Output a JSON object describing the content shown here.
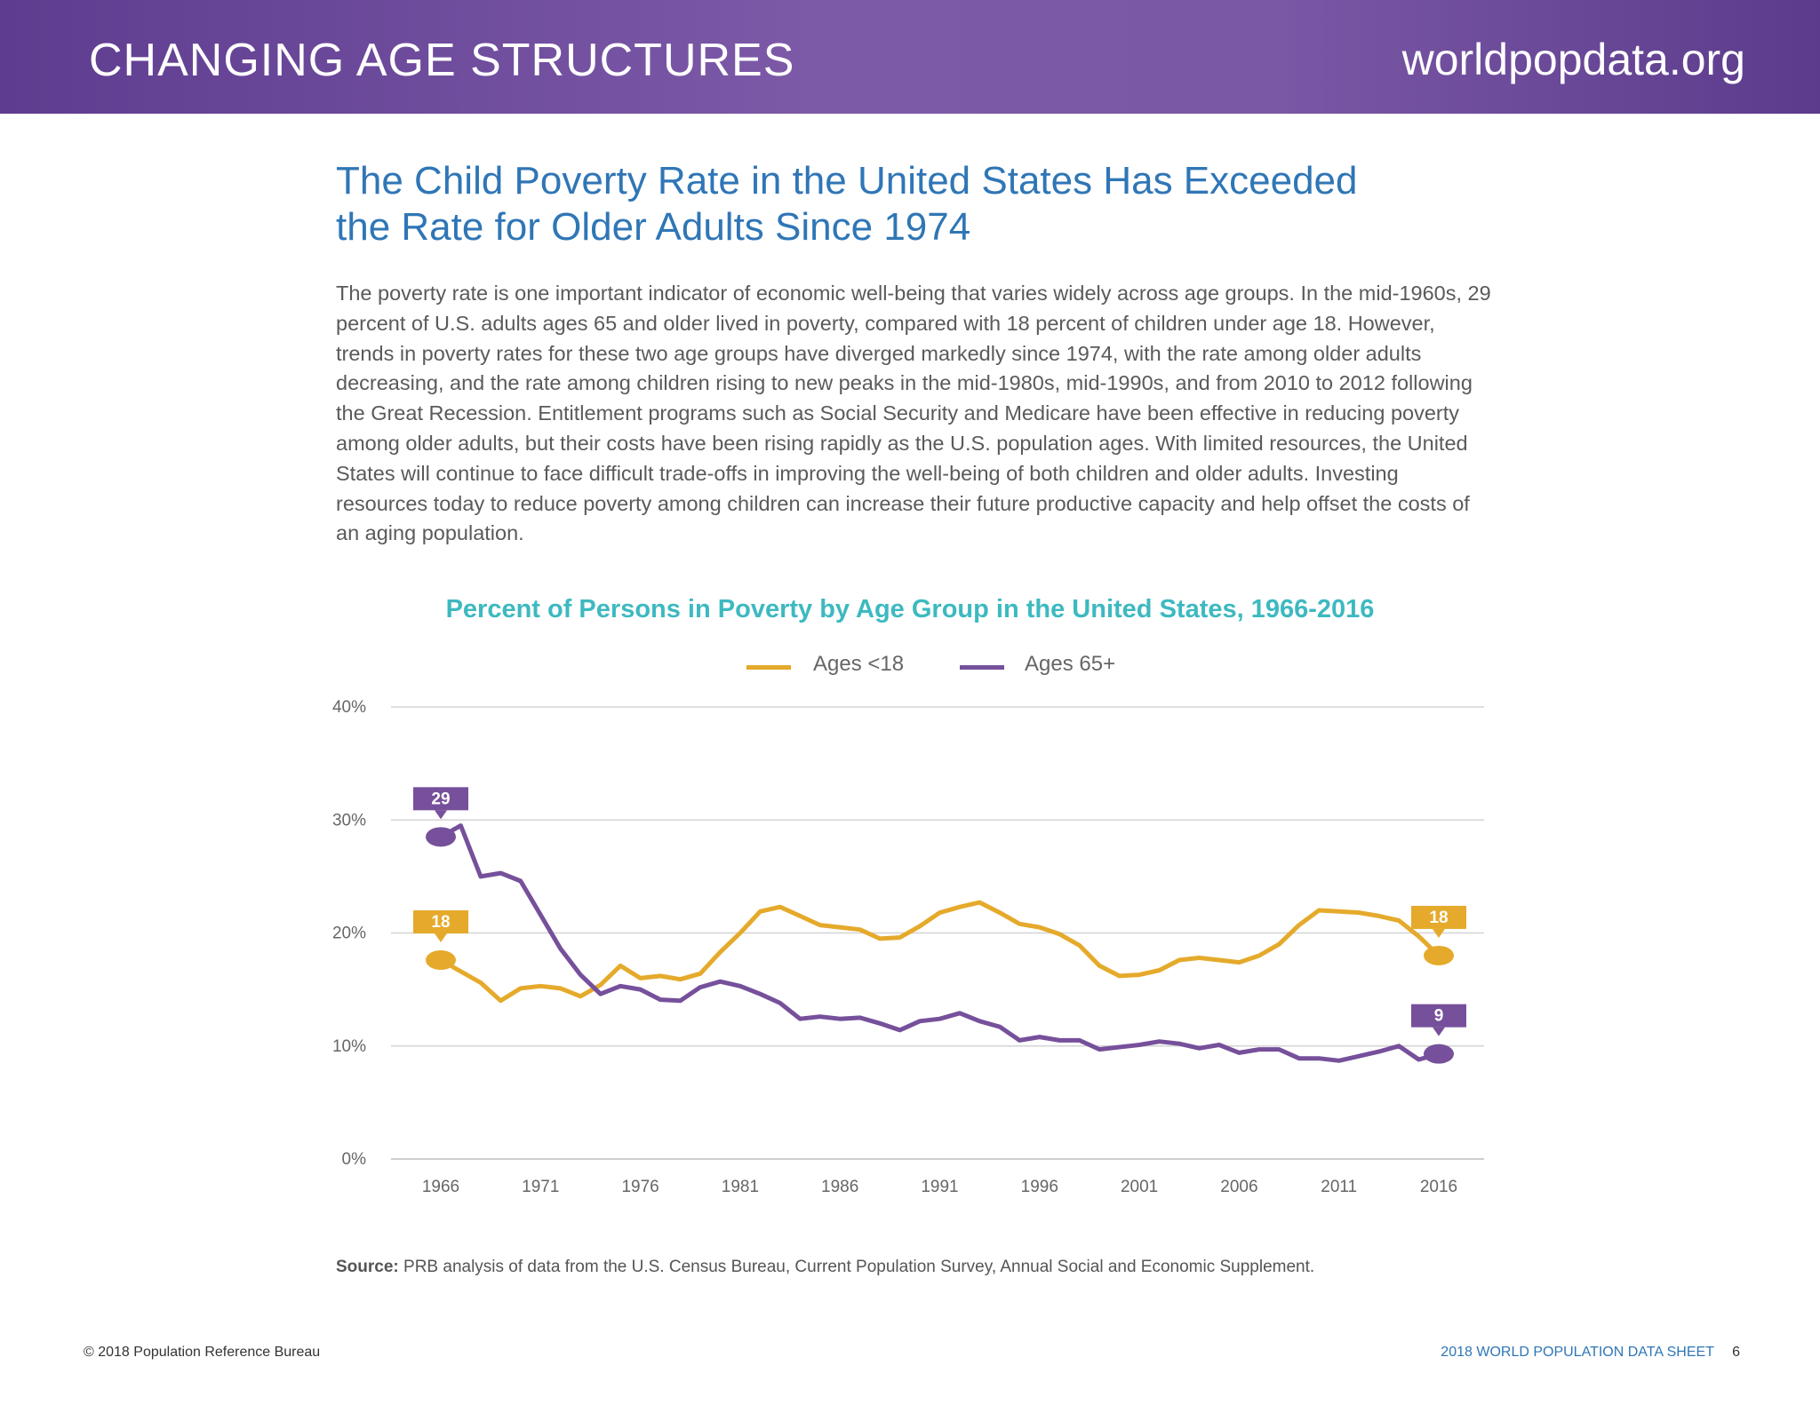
{
  "header": {
    "section_title": "CHANGING AGE STRUCTURES",
    "url": "worldpopdata.org"
  },
  "article": {
    "heading_line1": "The Child Poverty Rate in the United States Has Exceeded",
    "heading_line2": "the Rate for Older Adults Since 1974",
    "body": "The poverty rate is one important indicator of economic well-being that varies widely across age groups. In the mid-1960s, 29 percent of U.S. adults ages 65 and older lived in poverty, compared with 18 percent of children under age 18. However, trends in poverty rates for these two age groups have diverged markedly since 1974, with the rate among older adults decreasing, and the rate among children rising to new peaks in the mid-1980s, mid-1990s, and from 2010 to 2012 following the Great Recession. Entitlement programs such as Social Security and Medicare have been effective in reducing poverty among older adults, but their costs have been rising rapidly as the U.S. population ages. With limited resources, the United States will continue to face difficult trade-offs in improving the well-being of both children and older adults. Investing resources today to reduce poverty among children can increase their future productive capacity and help offset the costs of an aging population."
  },
  "chart_data": {
    "type": "line",
    "title": "Percent of Persons in Poverty by Age Group in the United States, 1966-2016",
    "xlabel": "",
    "ylabel": "",
    "x": [
      1966,
      1967,
      1968,
      1969,
      1970,
      1971,
      1972,
      1973,
      1974,
      1975,
      1976,
      1977,
      1978,
      1979,
      1980,
      1981,
      1982,
      1983,
      1984,
      1985,
      1986,
      1987,
      1988,
      1989,
      1990,
      1991,
      1992,
      1993,
      1994,
      1995,
      1996,
      1997,
      1998,
      1999,
      2000,
      2001,
      2002,
      2003,
      2004,
      2005,
      2006,
      2007,
      2008,
      2009,
      2010,
      2011,
      2012,
      2013,
      2014,
      2015,
      2016
    ],
    "xlim": [
      1966,
      2016
    ],
    "xticks": [
      "1966",
      "1971",
      "1976",
      "1981",
      "1986",
      "1991",
      "1996",
      "2001",
      "2006",
      "2011",
      "2016"
    ],
    "xtick_values": [
      1966,
      1971,
      1976,
      1981,
      1986,
      1991,
      1996,
      2001,
      2006,
      2011,
      2016
    ],
    "ylim": [
      0,
      40
    ],
    "yticks": [
      "0%",
      "10%",
      "20%",
      "30%",
      "40%"
    ],
    "ytick_values": [
      0,
      10,
      20,
      30,
      40
    ],
    "grid": true,
    "legend_position": "top-center",
    "series": [
      {
        "name": "Ages <18",
        "color": "#e5aa2b",
        "values": [
          17.6,
          16.6,
          15.6,
          14.0,
          15.1,
          15.3,
          15.1,
          14.4,
          15.4,
          17.1,
          16.0,
          16.2,
          15.9,
          16.4,
          18.3,
          20.0,
          21.9,
          22.3,
          21.5,
          20.7,
          20.5,
          20.3,
          19.5,
          19.6,
          20.6,
          21.8,
          22.3,
          22.7,
          21.8,
          20.8,
          20.5,
          19.9,
          18.9,
          17.1,
          16.2,
          16.3,
          16.7,
          17.6,
          17.8,
          17.6,
          17.4,
          18.0,
          19.0,
          20.7,
          22.0,
          21.9,
          21.8,
          21.5,
          21.1,
          19.7,
          18.0
        ],
        "start_label": "18",
        "end_label": "18"
      },
      {
        "name": "Ages 65+",
        "color": "#76509b",
        "values": [
          28.5,
          29.5,
          25.0,
          25.3,
          24.6,
          21.6,
          18.6,
          16.3,
          14.6,
          15.3,
          15.0,
          14.1,
          14.0,
          15.2,
          15.7,
          15.3,
          14.6,
          13.8,
          12.4,
          12.6,
          12.4,
          12.5,
          12.0,
          11.4,
          12.2,
          12.4,
          12.9,
          12.2,
          11.7,
          10.5,
          10.8,
          10.5,
          10.5,
          9.7,
          9.9,
          10.1,
          10.4,
          10.2,
          9.8,
          10.1,
          9.4,
          9.7,
          9.7,
          8.9,
          8.9,
          8.7,
          9.1,
          9.5,
          10.0,
          8.8,
          9.3
        ],
        "start_label": "29",
        "end_label": "9"
      }
    ],
    "source_label": "Source:",
    "source_text": "PRB analysis of data from the U.S. Census Bureau, Current Population Survey, Annual Social and Economic Supplement."
  },
  "footer": {
    "copyright": "© 2018 Population Reference Bureau",
    "publication": "2018 WORLD POPULATION DATA SHEET",
    "page_number": "6"
  }
}
